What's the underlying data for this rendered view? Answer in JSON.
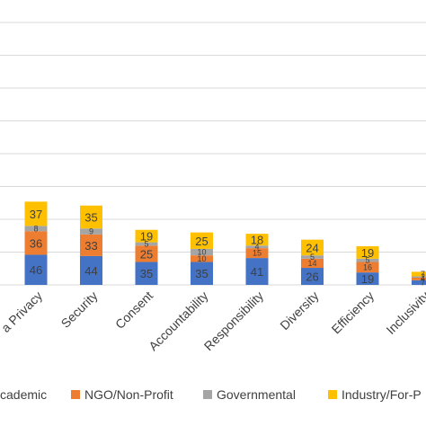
{
  "chart_data": {
    "type": "bar",
    "stacked": true,
    "categories": [
      "a Privacy",
      "Security",
      "Consent",
      "Accountability",
      "Responsibility",
      "Diversity",
      "Efficiency",
      "Inclusivity"
    ],
    "series": [
      {
        "name": "cademic",
        "color": "#4472C4",
        "values": [
          46,
          44,
          35,
          35,
          41,
          26,
          19,
          7
        ]
      },
      {
        "name": "NGO/Non-Profit",
        "color": "#ED7D31",
        "values": [
          36,
          33,
          25,
          10,
          15,
          14,
          16,
          4
        ]
      },
      {
        "name": "Governmental",
        "color": "#A5A5A5",
        "values": [
          8,
          9,
          5,
          10,
          4,
          5,
          5,
          2
        ]
      },
      {
        "name": "Industry/For-P",
        "color": "#FFC000",
        "values": [
          37,
          35,
          19,
          25,
          18,
          24,
          19,
          7
        ]
      }
    ],
    "ylim": [
      0,
      170
    ],
    "grid": true,
    "legend_position": "bottom"
  }
}
